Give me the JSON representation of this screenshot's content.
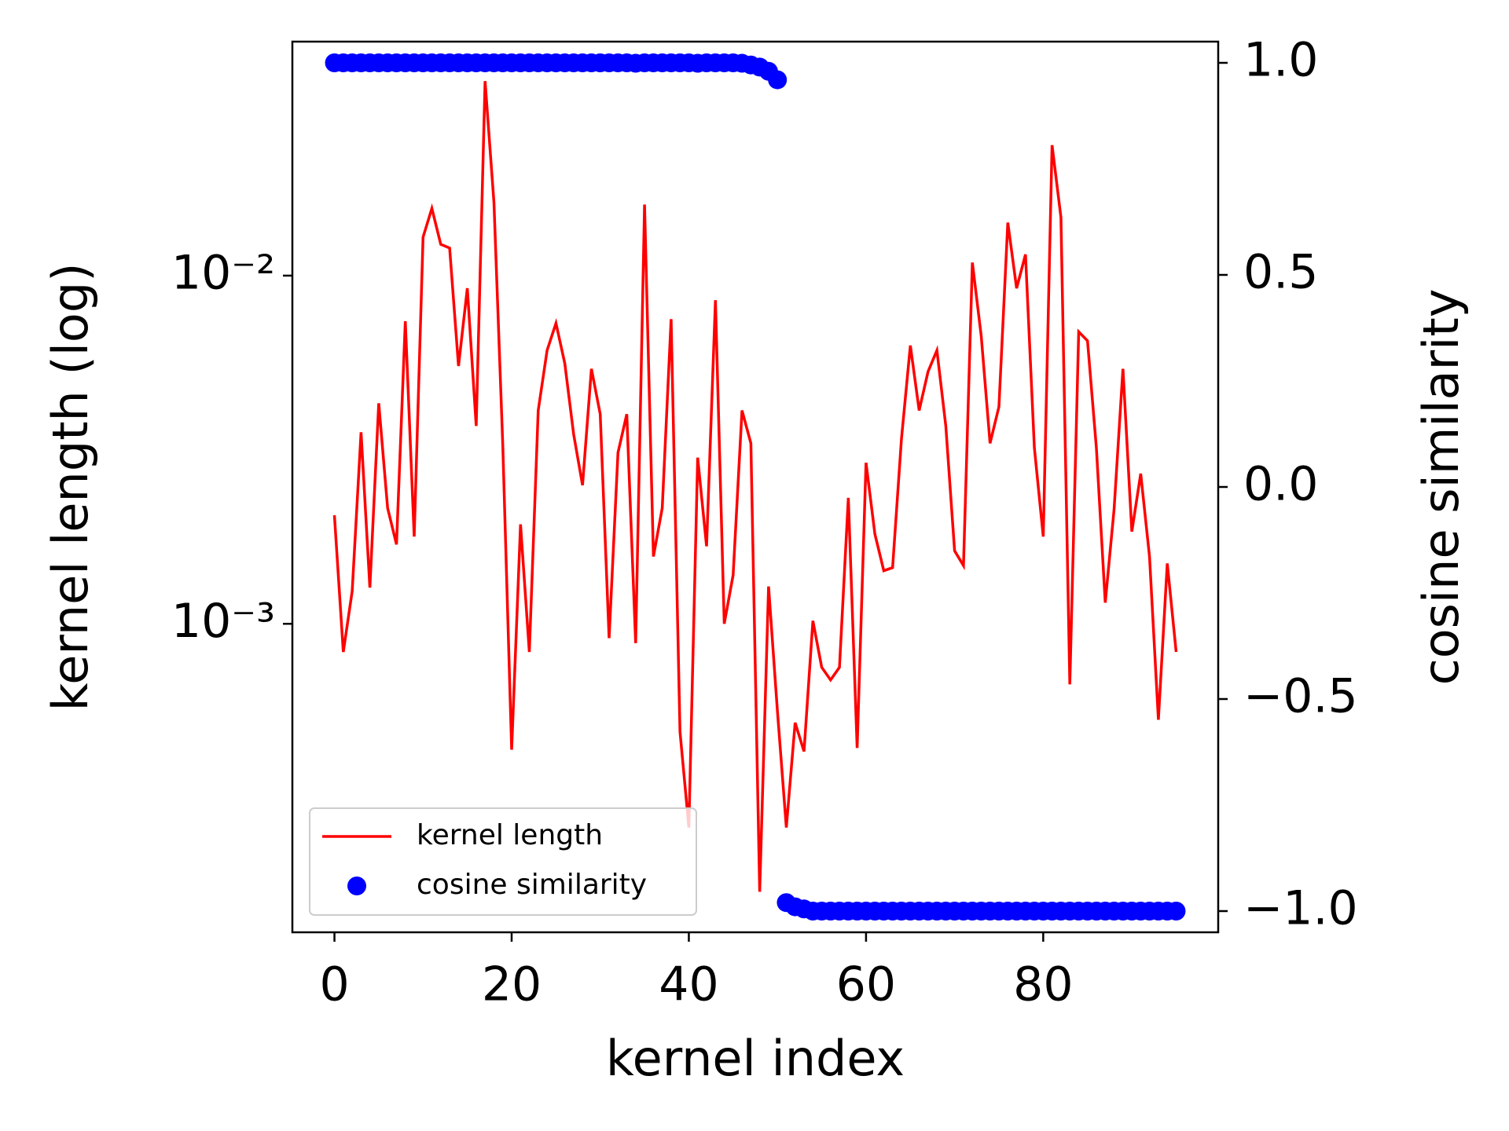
{
  "chart_data": {
    "type": "line-scatter",
    "xlabel": "kernel index",
    "ylabel": "kernel length (log)",
    "y2label": "cosine similarity",
    "xlim": [
      -4.75,
      99.75
    ],
    "xticks": [
      0,
      20,
      40,
      60,
      80
    ],
    "ylim": [
      0.00013,
      0.047
    ],
    "yscale": "log",
    "yticks": [
      {
        "value": 0.001,
        "label": "10⁻³"
      },
      {
        "value": 0.01,
        "label": "10⁻²"
      }
    ],
    "y2lim": [
      -1.05,
      1.05
    ],
    "y2ticks": [
      {
        "value": -1.0,
        "label": "−1.0"
      },
      {
        "value": -0.5,
        "label": "−0.5"
      },
      {
        "value": 0.0,
        "label": "0.0"
      },
      {
        "value": 0.5,
        "label": "0.5"
      },
      {
        "value": 1.0,
        "label": "1.0"
      }
    ],
    "legend": "lower left",
    "x": [
      0,
      1,
      2,
      3,
      4,
      5,
      6,
      7,
      8,
      9,
      10,
      11,
      12,
      13,
      14,
      15,
      16,
      17,
      18,
      19,
      20,
      21,
      22,
      23,
      24,
      25,
      26,
      27,
      28,
      29,
      30,
      31,
      32,
      33,
      34,
      35,
      36,
      37,
      38,
      39,
      40,
      41,
      42,
      43,
      44,
      45,
      46,
      47,
      48,
      49,
      50,
      51,
      52,
      53,
      54,
      55,
      56,
      57,
      58,
      59,
      60,
      61,
      62,
      63,
      64,
      65,
      66,
      67,
      68,
      69,
      70,
      71,
      72,
      73,
      74,
      75,
      76,
      77,
      78,
      79,
      80,
      81,
      82,
      83,
      84,
      85,
      86,
      87,
      88,
      89,
      90,
      91,
      92,
      93,
      94,
      95
    ],
    "series": [
      {
        "name": "kernel length",
        "color": "#ff0000",
        "kind": "line",
        "values": [
          0.00205,
          0.00083,
          0.00124,
          0.00355,
          0.00127,
          0.0043,
          0.00215,
          0.00169,
          0.0074,
          0.00178,
          0.0129,
          0.0156,
          0.0123,
          0.012,
          0.0055,
          0.0092,
          0.0037,
          0.0362,
          0.0162,
          0.00327,
          0.000435,
          0.00193,
          0.00083,
          0.0041,
          0.0061,
          0.0073,
          0.0056,
          0.0035,
          0.0025,
          0.0054,
          0.004,
          0.00091,
          0.0031,
          0.004,
          0.00088,
          0.016,
          0.00156,
          0.00215,
          0.0075,
          0.00049,
          0.00026,
          0.003,
          0.00167,
          0.0085,
          0.001,
          0.00138,
          0.0041,
          0.0033,
          0.00017,
          0.00128,
          0.00056,
          0.00026,
          0.00052,
          0.00043,
          0.00102,
          0.00075,
          0.00069,
          0.00075,
          0.0023,
          0.00044,
          0.0029,
          0.00181,
          0.00142,
          0.00145,
          0.0034,
          0.0063,
          0.0041,
          0.0053,
          0.0061,
          0.0037,
          0.00162,
          0.00147,
          0.0109,
          0.0067,
          0.0033,
          0.0042,
          0.0142,
          0.0092,
          0.0115,
          0.0032,
          0.00178,
          0.0237,
          0.0147,
          0.00067,
          0.0069,
          0.0065,
          0.0032,
          0.00115,
          0.00213,
          0.0054,
          0.00184,
          0.0027,
          0.00156,
          0.00053,
          0.00149,
          0.00083
        ]
      },
      {
        "name": "cosine similarity",
        "color": "#0000ff",
        "kind": "scatter",
        "axis": "y2",
        "values": [
          1.0,
          1.0,
          1.0,
          1.0,
          1.0,
          1.0,
          1.0,
          1.0,
          1.0,
          1.0,
          1.0,
          1.0,
          1.0,
          1.0,
          1.0,
          1.0,
          1.0,
          1.0,
          1.0,
          1.0,
          1.0,
          1.0,
          1.0,
          1.0,
          1.0,
          1.0,
          1.0,
          1.0,
          1.0,
          1.0,
          1.0,
          1.0,
          1.0,
          1.0,
          0.999,
          1.0,
          1.0,
          1.0,
          1.0,
          1.0,
          1.0,
          0.999,
          1.0,
          1.0,
          1.0,
          1.0,
          0.999,
          0.995,
          0.99,
          0.98,
          0.96,
          -0.98,
          -0.99,
          -0.995,
          -1.0,
          -1.0,
          -1.0,
          -1.0,
          -1.0,
          -1.0,
          -1.0,
          -1.0,
          -1.0,
          -1.0,
          -1.0,
          -1.0,
          -1.0,
          -1.0,
          -1.0,
          -1.0,
          -1.0,
          -1.0,
          -1.0,
          -1.0,
          -1.0,
          -1.0,
          -1.0,
          -1.0,
          -1.0,
          -1.0,
          -1.0,
          -1.0,
          -1.0,
          -1.0,
          -1.0,
          -1.0,
          -1.0,
          -1.0,
          -1.0,
          -1.0,
          -1.0,
          -1.0,
          -1.0,
          -1.0,
          -1.0,
          -1.0
        ]
      }
    ]
  }
}
